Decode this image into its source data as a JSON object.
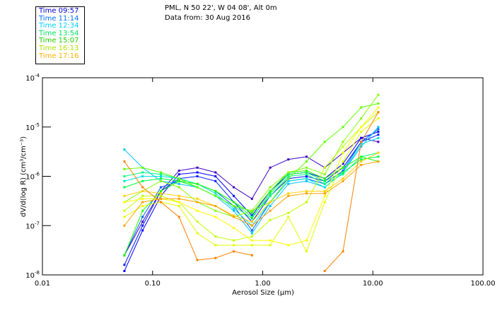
{
  "header": {
    "location": "PML, N 50 22', W 04 08', Alt 0m",
    "date": "Data from: 30 Aug 2016"
  },
  "legend": [
    {
      "label": "Time 09:57",
      "color": "#0000d0"
    },
    {
      "label": "Time 11:14",
      "color": "#0070ff"
    },
    {
      "label": "Time 12:34",
      "color": "#00d0ff"
    },
    {
      "label": "Time 13:54",
      "color": "#00e060"
    },
    {
      "label": "Time 15:07",
      "color": "#20d000"
    },
    {
      "label": "Time 16:13",
      "color": "#b0e000"
    },
    {
      "label": "Time 17:16",
      "color": "#ffb000"
    }
  ],
  "chart_data": {
    "type": "line",
    "xscale": "log",
    "yscale": "log",
    "xlabel": "Aerosol Size (μm)",
    "ylabel": "dV/d(log R) (cm³/cm⁻³)",
    "xlim": [
      0.01,
      100
    ],
    "ylim": [
      1e-08,
      0.0001
    ],
    "xticks": [
      "0.01",
      "0.10",
      "1.00",
      "10.00",
      "100.00"
    ],
    "yticks": [
      {
        "base": "10",
        "exp": "-4"
      },
      {
        "base": "10",
        "exp": "-5"
      },
      {
        "base": "10",
        "exp": "-6"
      },
      {
        "base": "10",
        "exp": "-7"
      },
      {
        "base": "10",
        "exp": "-8"
      }
    ],
    "x": [
      0.0555,
      0.0812,
      0.119,
      0.174,
      0.255,
      0.373,
      0.546,
      0.799,
      1.17,
      1.71,
      2.5,
      3.66,
      5.36,
      7.84,
      11.2
    ],
    "series": [
      {
        "color": "#4000c0",
        "values": [
          2.5e-08,
          1.2e-07,
          5e-07,
          1.3e-06,
          1.5e-06,
          1.2e-06,
          6e-07,
          3.5e-07,
          1.5e-06,
          2.2e-06,
          2.5e-06,
          1.5e-06,
          3e-06,
          6e-06,
          5e-06
        ]
      },
      {
        "color": "#0000ff",
        "values": [
          1.2e-08,
          8e-08,
          4e-07,
          1.1e-06,
          1.2e-06,
          1e-06,
          4e-07,
          1.6e-07,
          5e-07,
          1.1e-06,
          1.2e-06,
          9e-07,
          1.8e-06,
          6e-06,
          8e-06
        ]
      },
      {
        "color": "#0020ff",
        "values": [
          1.6e-08,
          1e-07,
          5e-07,
          9e-07,
          1e-06,
          8e-07,
          3e-07,
          1.2e-07,
          4e-07,
          9e-07,
          1e-06,
          8e-07,
          1.5e-06,
          5e-06,
          7e-06
        ]
      },
      {
        "color": "#0060ff",
        "values": [
          2.5e-08,
          1.5e-07,
          6e-07,
          8e-07,
          7e-07,
          5e-07,
          2.5e-07,
          8e-08,
          3e-07,
          8e-07,
          9e-07,
          7e-07,
          1.3e-06,
          5e-06,
          9e-06
        ]
      },
      {
        "color": "#00c0ff",
        "values": [
          3.5e-06,
          1.5e-06,
          8e-07,
          7e-07,
          6e-07,
          4e-07,
          2e-07,
          7e-08,
          2.5e-07,
          7e-07,
          8e-07,
          6e-07,
          1.2e-06,
          4e-06,
          1e-05
        ]
      },
      {
        "color": "#00e0e0",
        "values": [
          8e-07,
          1e-06,
          1e-06,
          9e-07,
          7e-07,
          4.5e-07,
          2.2e-07,
          1e-07,
          3e-07,
          8e-07,
          9e-07,
          6e-07,
          1.2e-06,
          4.5e-06,
          6e-06
        ]
      },
      {
        "color": "#00ff80",
        "values": [
          1e-06,
          1.2e-06,
          1.1e-06,
          9e-07,
          7e-07,
          5e-07,
          3e-07,
          1.5e-07,
          4e-07,
          1e-06,
          1.1e-06,
          7e-07,
          1.1e-06,
          2.5e-06,
          3e-06
        ]
      },
      {
        "color": "#00ff40",
        "values": [
          6e-07,
          8e-07,
          9e-07,
          8e-07,
          6e-07,
          4e-07,
          2.5e-07,
          1.4e-07,
          4.5e-07,
          1.1e-06,
          1.2e-06,
          8e-07,
          1.2e-06,
          2.2e-06,
          2.5e-06
        ]
      },
      {
        "color": "#20ff00",
        "values": [
          2.5e-08,
          2e-07,
          5e-07,
          8e-07,
          7e-07,
          5e-07,
          3e-07,
          1.8e-07,
          5e-07,
          1.2e-06,
          1.3e-06,
          9e-07,
          1.5e-06,
          2.5e-06,
          2e-06
        ]
      },
      {
        "color": "#60ff00",
        "values": [
          1.4e-06,
          1.5e-06,
          1.2e-06,
          9e-07,
          6e-07,
          4e-07,
          2.5e-07,
          2e-07,
          3e-07,
          9e-07,
          2e-06,
          5e-06,
          1e-05,
          2.5e-05,
          3e-05
        ]
      },
      {
        "color": "#80ff00",
        "values": [
          3e-07,
          5e-07,
          8e-07,
          6e-07,
          3e-07,
          2e-07,
          1.5e-07,
          2e-07,
          6e-07,
          1.2e-06,
          1.5e-06,
          1.1e-06,
          5e-06,
          1.5e-05,
          4.5e-05
        ]
      },
      {
        "color": "#c0ff00",
        "values": [
          2e-07,
          4e-07,
          4e-07,
          3e-07,
          1.2e-07,
          6e-08,
          5e-08,
          6e-08,
          1.3e-07,
          1.8e-07,
          3e-07,
          1.5e-06,
          4e-06,
          1e-05,
          2e-05
        ]
      },
      {
        "color": "#e0ff00",
        "values": [
          1.5e-07,
          2.5e-07,
          3e-07,
          2.5e-07,
          7e-08,
          4e-08,
          4e-08,
          4e-08,
          4e-08,
          1.5e-07,
          3e-08,
          3e-07,
          2e-06,
          8e-06,
          1.5e-05
        ]
      },
      {
        "color": "#ffff00",
        "values": [
          3e-07,
          3.5e-07,
          3.5e-07,
          3e-07,
          2e-07,
          1.5e-07,
          9e-08,
          5e-08,
          5e-08,
          4e-08,
          5e-08,
          4e-07,
          3e-06,
          1e-05,
          2.5e-05
        ]
      },
      {
        "color": "#ffd000",
        "values": [
          4e-07,
          5e-07,
          4.5e-07,
          4e-07,
          3.5e-07,
          2.5e-07,
          1.6e-07,
          1.2e-07,
          3e-07,
          4.5e-07,
          5e-07,
          5e-07,
          9e-07,
          2e-06,
          3e-06
        ]
      },
      {
        "color": "#ffa000",
        "values": [
          1e-07,
          3e-07,
          3.5e-07,
          3.5e-07,
          3e-07,
          2.5e-07,
          1.5e-07,
          1e-07,
          2e-07,
          4e-07,
          4.5e-07,
          4.5e-07,
          8e-07,
          1.7e-06,
          2e-06
        ]
      },
      {
        "color": "#ff8000",
        "values": [
          2e-06,
          6e-07,
          3e-07,
          1.5e-07,
          2e-08,
          2.2e-08,
          3e-08,
          2.5e-08,
          null,
          null,
          null,
          1.2e-08,
          3e-08,
          5e-06,
          2e-05
        ]
      }
    ]
  }
}
